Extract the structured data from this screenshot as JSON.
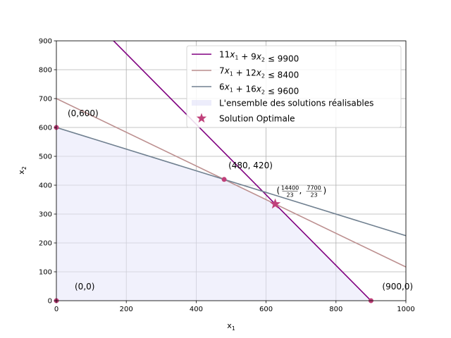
{
  "chart_data": {
    "type": "line",
    "xlabel": {
      "base": "x",
      "sub": "1"
    },
    "ylabel": {
      "base": "x",
      "sub": "2"
    },
    "xlim": [
      0,
      1000
    ],
    "ylim": [
      0,
      900
    ],
    "xticks": [
      0,
      200,
      400,
      600,
      800,
      1000
    ],
    "yticks": [
      0,
      100,
      200,
      300,
      400,
      500,
      600,
      700,
      800,
      900
    ],
    "grid": true,
    "legend_position": "top-right",
    "series": [
      {
        "name": "11x₁ + 9x₂ ≤ 9900",
        "legend": [
          [
            "",
            "11"
          ],
          [
            "x",
            "1"
          ],
          [
            "+",
            "9"
          ],
          [
            "x",
            "2"
          ],
          [
            "≤",
            "9900"
          ]
        ],
        "color": "#800080",
        "x": [
          0,
          1000
        ],
        "y": [
          1100,
          -122.22
        ]
      },
      {
        "name": "7x₁ + 12x₂ ≤ 8400",
        "legend": [
          [
            "",
            "7"
          ],
          [
            "x",
            "1"
          ],
          [
            "+",
            "12"
          ],
          [
            "x",
            "2"
          ],
          [
            "≤",
            "8400"
          ]
        ],
        "color": "#bc8f8f",
        "x": [
          0,
          1000
        ],
        "y": [
          700,
          116.67
        ]
      },
      {
        "name": "6x₁ + 16x₂ ≤ 9600",
        "legend": [
          [
            "",
            "6"
          ],
          [
            "x",
            "1"
          ],
          [
            "+",
            "16"
          ],
          [
            "x",
            "2"
          ],
          [
            "≤",
            "9600"
          ]
        ],
        "color": "#708090",
        "x": [
          0,
          1000
        ],
        "y": [
          600,
          225
        ]
      }
    ],
    "feasible_region": {
      "name": "L'ensemble des solutions réalisables",
      "color": "#e6e6fa",
      "polygon": [
        [
          0,
          0
        ],
        [
          0,
          600
        ],
        [
          480,
          420
        ],
        [
          626.09,
          334.78
        ],
        [
          900,
          0
        ]
      ]
    },
    "optimal": {
      "name": "Solution Optimale",
      "x": 626.09,
      "y": 334.78,
      "color": "#c0407a"
    },
    "vertices": [
      {
        "x": 0,
        "y": 0,
        "label": "(0,0)",
        "color": "#c0407a"
      },
      {
        "x": 0,
        "y": 600,
        "label": "(0,600)",
        "color": "#c0407a"
      },
      {
        "x": 480,
        "y": 420,
        "label": "(480, 420)",
        "color": "#c0407a"
      },
      {
        "x": 900,
        "y": 0,
        "label": "(900,0)",
        "color": "#c0407a"
      }
    ],
    "optimal_label": {
      "num1": "14400",
      "den1": "23",
      "num2": "7700",
      "den2": "23"
    }
  }
}
